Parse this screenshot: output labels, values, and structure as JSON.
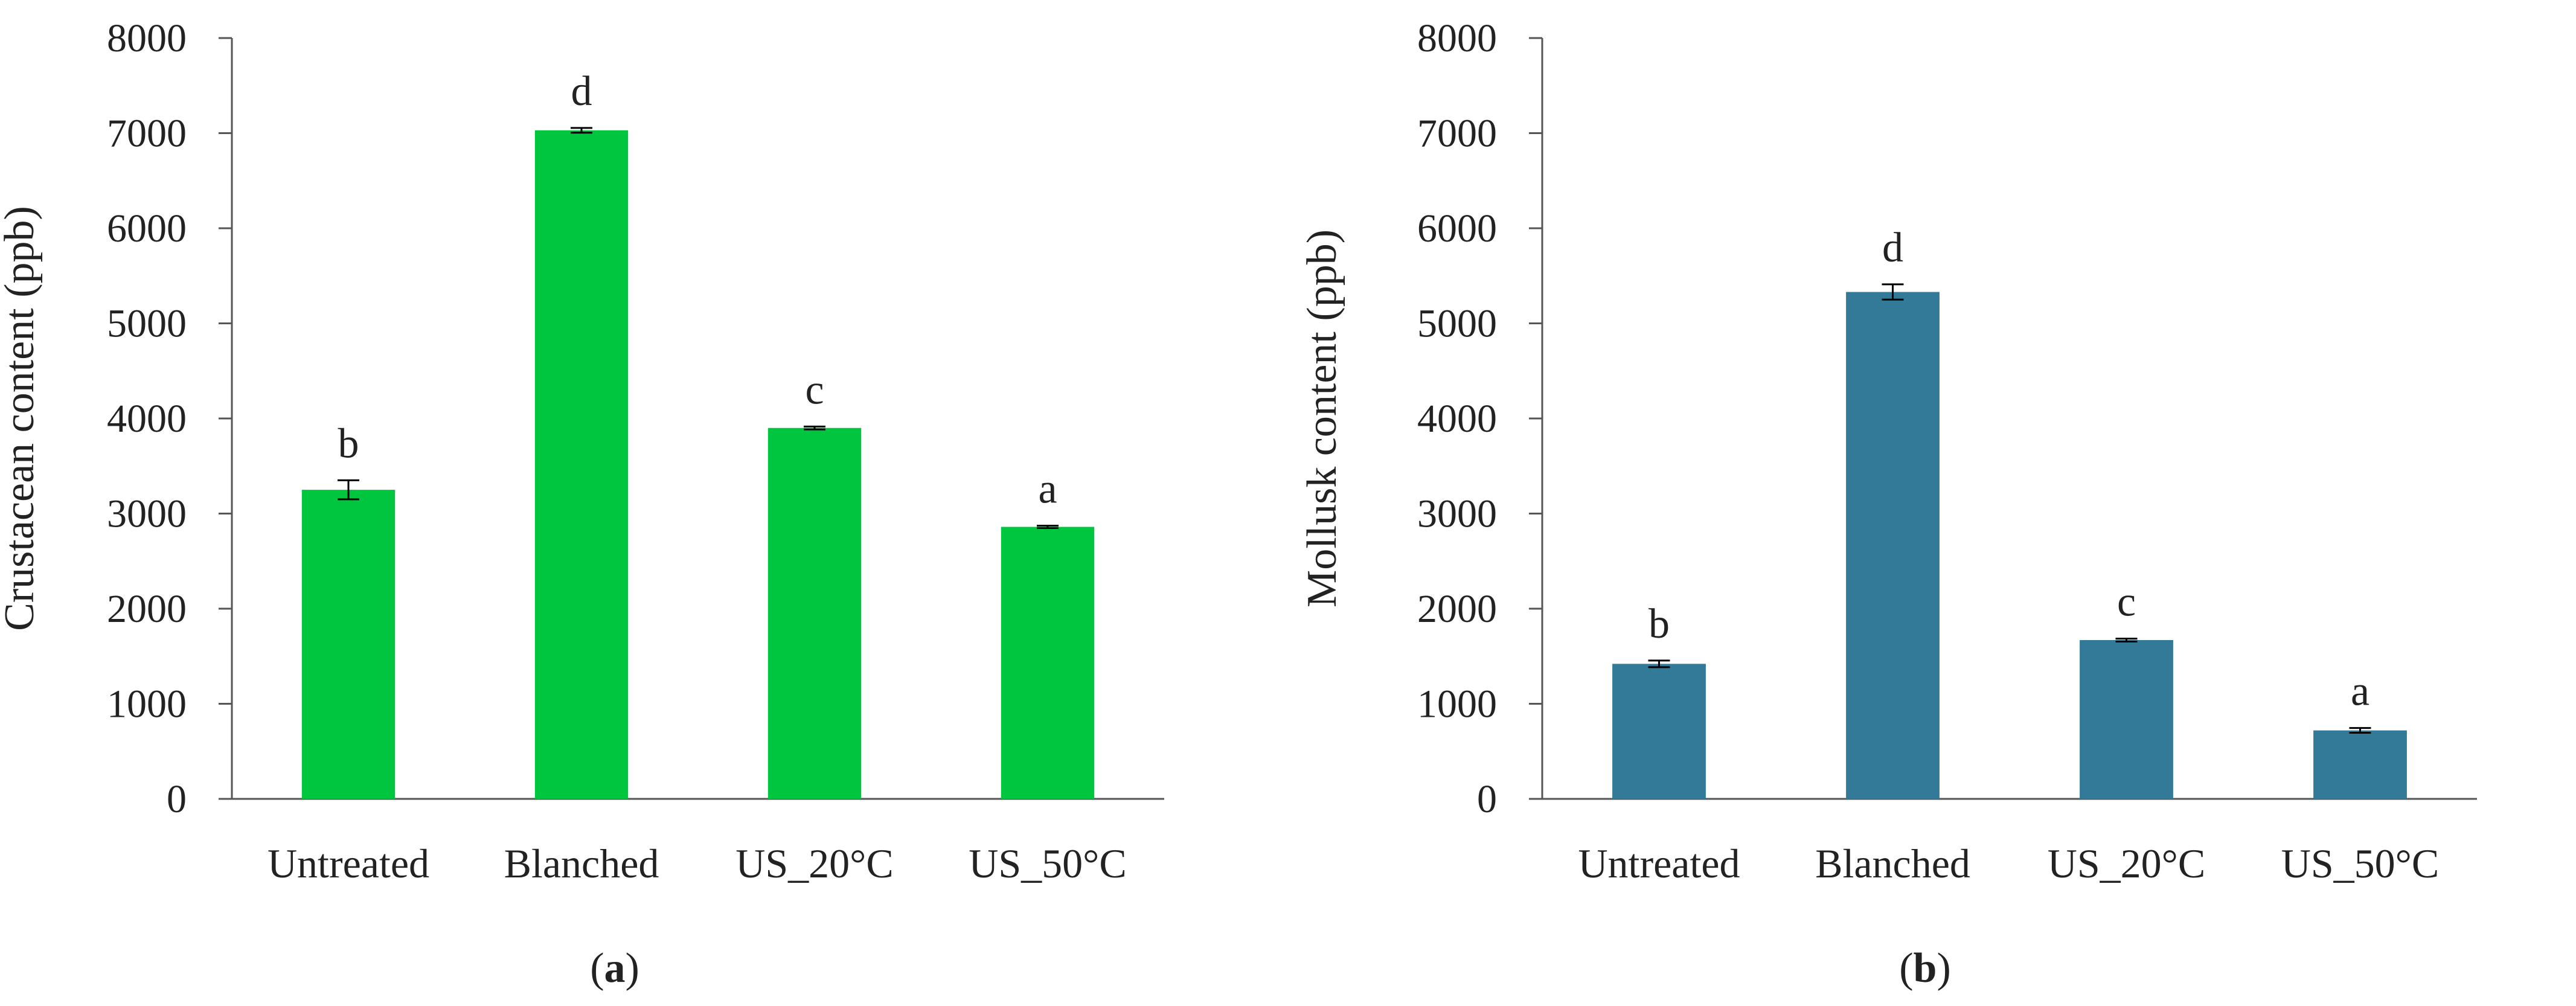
{
  "chart_data": [
    {
      "type": "bar",
      "panel_label": "a",
      "ylabel": "Crustacean content (ppb)",
      "xlabel": "",
      "ylim": [
        0,
        8000
      ],
      "yticks": [
        0,
        1000,
        2000,
        3000,
        4000,
        5000,
        6000,
        7000,
        8000
      ],
      "categories": [
        "Untreated",
        "Blanched",
        "US_20°C",
        "US_50°C"
      ],
      "values": [
        3250,
        7030,
        3900,
        2860
      ],
      "errors": [
        100,
        25,
        15,
        12
      ],
      "significance": [
        "b",
        "d",
        "c",
        "a"
      ],
      "color": "#00c63f"
    },
    {
      "type": "bar",
      "panel_label": "b",
      "ylabel": "Mollusk content (ppb)",
      "xlabel": "",
      "ylim": [
        0,
        8000
      ],
      "yticks": [
        0,
        1000,
        2000,
        3000,
        4000,
        5000,
        6000,
        7000,
        8000
      ],
      "categories": [
        "Untreated",
        "Blanched",
        "US_20°C",
        "US_50°C"
      ],
      "values": [
        1420,
        5330,
        1670,
        720
      ],
      "errors": [
        35,
        80,
        15,
        25
      ],
      "significance": [
        "b",
        "d",
        "c",
        "a"
      ],
      "color": "#337a99"
    }
  ]
}
